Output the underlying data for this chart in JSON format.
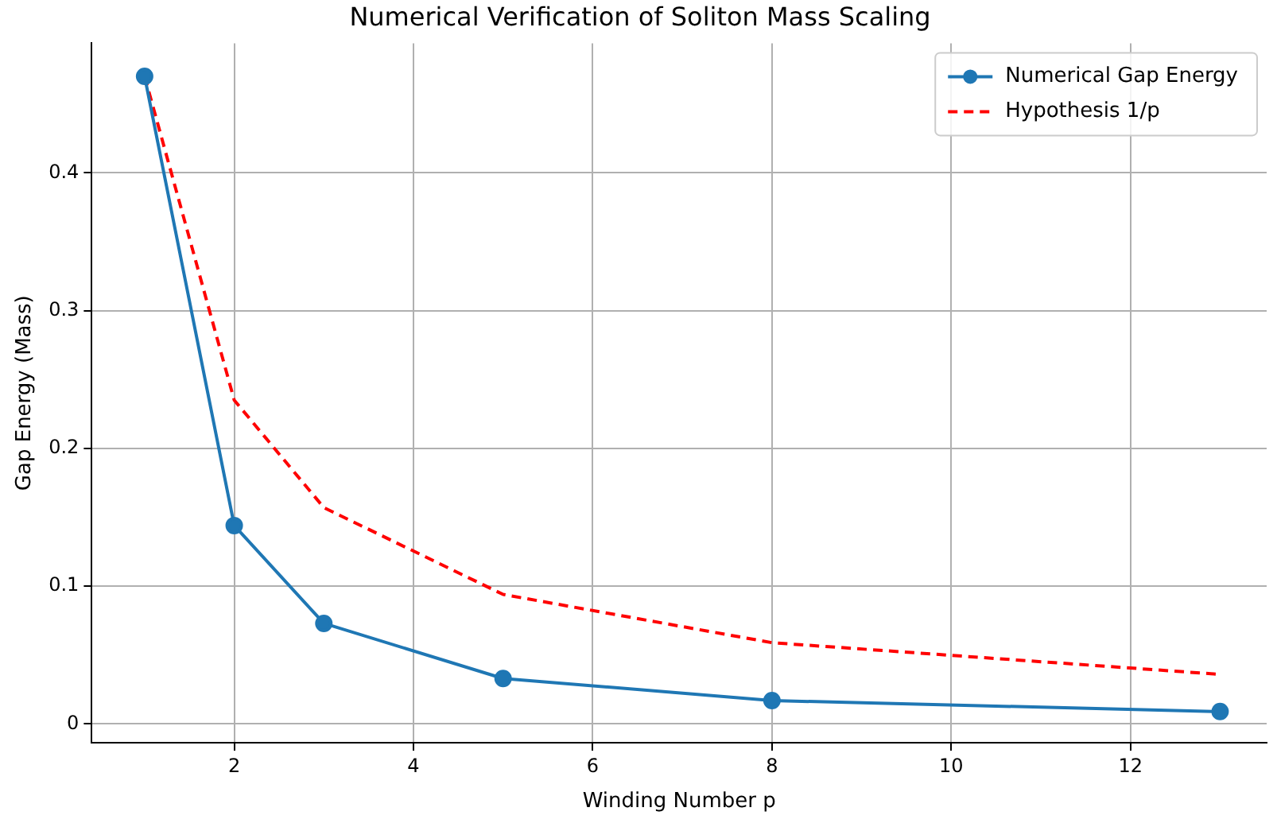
{
  "chart_data": {
    "type": "line",
    "title": "Numerical Verification of Soliton Mass Scaling",
    "xlabel": "Winding Number p",
    "ylabel": "Gap Energy (Mass)",
    "x": [
      1,
      2,
      3,
      5,
      8,
      13
    ],
    "series": [
      {
        "name": "Numerical Gap Energy",
        "color": "#1f77b4",
        "values": [
          0.47,
          0.144,
          0.073,
          0.033,
          0.017,
          0.009
        ],
        "marker": "circle",
        "line_style": "solid"
      },
      {
        "name": "Hypothesis 1/p",
        "color": "#ff0000",
        "values": [
          0.47,
          0.235,
          0.157,
          0.094,
          0.059,
          0.036
        ],
        "marker": "none",
        "line_style": "dashed"
      }
    ],
    "xlim": [
      0.41,
      13.52
    ],
    "xticks": [
      2,
      4,
      6,
      8,
      10,
      12
    ],
    "ylim": [
      -0.0136,
      0.494
    ],
    "yticks": [
      0,
      0.1,
      0.2,
      0.3,
      0.4
    ],
    "grid": true,
    "legend": "top right"
  }
}
